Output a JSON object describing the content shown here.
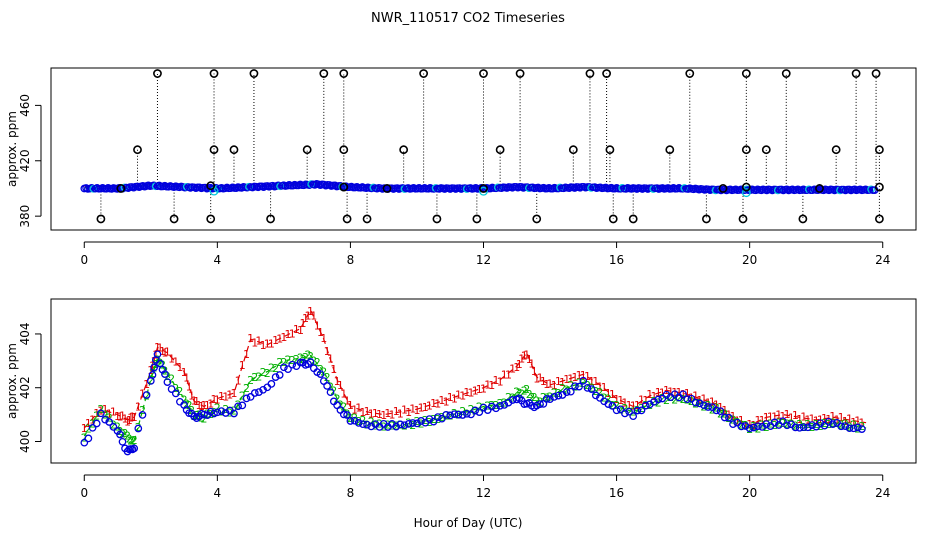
{
  "figure": {
    "title": "NWR_110517  CO2 Timeseries",
    "xlabel": "Hour of Day (UTC)"
  },
  "chart_data": [
    {
      "type": "scatter",
      "panel": "top",
      "title": "NWR_110517  CO2 Timeseries",
      "xlabel": "",
      "ylabel": "approx. ppm",
      "xlim": [
        -1.0,
        25.0
      ],
      "ylim": [
        370,
        487
      ],
      "x_ticks": [
        0,
        4,
        8,
        12,
        16,
        20,
        24
      ],
      "y_ticks": [
        380,
        420,
        460
      ],
      "baseline_note": "dense blue/cyan/green/red baseline near ~400 ppm across 0-24 h",
      "baseline": {
        "x": [
          0,
          1,
          2,
          3,
          4,
          5,
          6,
          7,
          8,
          9,
          10,
          11,
          12,
          13,
          14,
          15,
          16,
          17,
          18,
          19,
          20,
          21,
          22,
          23,
          23.8
        ],
        "y": [
          400,
          400,
          402,
          401,
          400,
          401,
          402,
          403,
          401,
          400,
          400,
          400,
          400,
          401,
          400,
          401,
          400,
          400,
          400,
          399,
          399,
          399,
          399,
          399,
          399
        ]
      },
      "high_outliers": {
        "x": [
          2.2,
          3.9,
          5.1,
          7.2,
          7.8,
          10.2,
          12.0,
          13.1,
          15.2,
          15.7,
          18.2,
          19.9,
          21.1,
          23.2,
          23.8
        ],
        "y": [
          483,
          483,
          483,
          483,
          483,
          483,
          483,
          483,
          483,
          483,
          483,
          483,
          483,
          483,
          483
        ]
      },
      "mid_outliers": {
        "x": [
          1.6,
          3.9,
          4.5,
          6.7,
          7.8,
          9.6,
          12.5,
          14.7,
          15.8,
          17.6,
          19.9,
          20.5,
          22.6,
          23.9
        ],
        "y": [
          428,
          428,
          428,
          428,
          428,
          428,
          428,
          428,
          428,
          428,
          428,
          428,
          428,
          428
        ]
      },
      "low_outliers": {
        "x": [
          0.5,
          2.7,
          3.8,
          5.6,
          7.9,
          8.5,
          10.6,
          11.8,
          13.6,
          15.9,
          16.5,
          18.7,
          19.8,
          21.6,
          23.9
        ],
        "y": [
          378,
          378,
          378,
          378,
          378,
          378,
          378,
          378,
          378,
          378,
          378,
          378,
          378,
          378,
          378
        ]
      },
      "flagged_near_baseline": {
        "x": [
          1.1,
          3.8,
          7.8,
          9.1,
          12.0,
          19.2,
          19.9,
          22.1,
          23.9
        ],
        "y": [
          400,
          402,
          401,
          400,
          400,
          400,
          401,
          400,
          401
        ]
      }
    },
    {
      "type": "line",
      "panel": "bottom",
      "title": "",
      "xlabel": "Hour of Day (UTC)",
      "ylabel": "approx. ppm",
      "xlim": [
        -1.0,
        25.0
      ],
      "ylim": [
        399.2,
        405.3
      ],
      "x_ticks": [
        0,
        4,
        8,
        12,
        16,
        20,
        24
      ],
      "y_ticks": [
        400,
        402,
        404
      ],
      "point_symbols": {
        "series_1": "1",
        "series_2": "2",
        "series_3": "3"
      },
      "x": [
        0,
        0.5,
        1.0,
        1.3,
        1.5,
        2.0,
        2.2,
        2.5,
        3.0,
        3.3,
        3.6,
        4.0,
        4.5,
        5.0,
        5.5,
        6.0,
        6.5,
        6.8,
        7.2,
        7.6,
        8.0,
        8.5,
        9.0,
        9.5,
        10.0,
        10.5,
        11.0,
        11.5,
        12.0,
        12.5,
        13.0,
        13.3,
        13.6,
        14.0,
        14.5,
        15.0,
        15.5,
        16.0,
        16.5,
        17.0,
        17.5,
        18.0,
        18.5,
        19.0,
        19.5,
        20.0,
        20.5,
        21.0,
        21.5,
        22.0,
        22.5,
        23.0,
        23.5
      ],
      "series": [
        {
          "name": "1",
          "color": "#e00000",
          "values": [
            400.5,
            401.2,
            401.0,
            400.8,
            400.9,
            402.6,
            403.5,
            403.3,
            402.6,
            401.5,
            401.3,
            401.6,
            401.8,
            403.8,
            403.6,
            403.9,
            404.2,
            404.9,
            403.8,
            402.3,
            401.3,
            401.1,
            401.0,
            401.1,
            401.2,
            401.4,
            401.6,
            401.8,
            402.0,
            402.3,
            402.8,
            403.3,
            402.4,
            402.1,
            402.3,
            402.5,
            402.1,
            401.6,
            401.3,
            401.7,
            401.9,
            401.8,
            401.6,
            401.4,
            400.9,
            400.6,
            400.9,
            401.0,
            400.9,
            400.8,
            400.9,
            400.8,
            400.7
          ]
        },
        {
          "name": "2",
          "color": "#00b000",
          "values": [
            400.2,
            401.2,
            400.5,
            400.2,
            400.0,
            402.3,
            403.1,
            402.5,
            401.6,
            401.0,
            400.9,
            401.2,
            401.1,
            402.3,
            402.6,
            403.0,
            403.1,
            403.2,
            402.6,
            401.6,
            400.9,
            400.7,
            400.6,
            400.6,
            400.7,
            400.8,
            401.0,
            401.1,
            401.3,
            401.4,
            401.8,
            401.9,
            401.5,
            401.7,
            402.0,
            402.2,
            401.8,
            401.3,
            401.1,
            401.4,
            401.6,
            401.6,
            401.4,
            401.2,
            400.8,
            400.5,
            400.6,
            400.7,
            400.6,
            400.6,
            400.7,
            400.6,
            400.5
          ]
        },
        {
          "name": "3",
          "color": "#0000dd",
          "values": [
            399.9,
            401.0,
            400.4,
            399.6,
            399.8,
            402.3,
            403.2,
            402.2,
            401.3,
            400.9,
            401.0,
            401.1,
            401.1,
            401.7,
            402.0,
            402.7,
            402.9,
            402.9,
            402.3,
            401.3,
            400.8,
            400.6,
            400.6,
            400.6,
            400.7,
            400.8,
            401.0,
            401.0,
            401.2,
            401.3,
            401.6,
            401.4,
            401.3,
            401.6,
            401.8,
            402.2,
            401.6,
            401.2,
            401.0,
            401.4,
            401.7,
            401.7,
            401.4,
            401.2,
            400.7,
            400.5,
            400.6,
            400.7,
            400.5,
            400.6,
            400.7,
            400.5,
            400.5
          ]
        }
      ]
    }
  ]
}
